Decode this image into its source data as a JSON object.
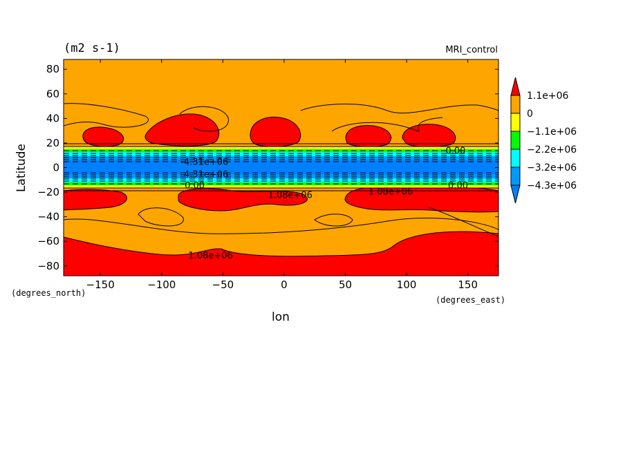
{
  "chart_data": {
    "type": "heatmap",
    "title_left": "(m2 s-1)",
    "title_right": "MRI_control",
    "xlabel": "lon",
    "ylabel": "Latitude",
    "x_unit_label": "(degrees_east)",
    "y_unit_label": "(degrees_north)",
    "xlim": [
      -180,
      175
    ],
    "ylim": [
      -88,
      88
    ],
    "x_ticks": [
      -150,
      -100,
      -50,
      0,
      50,
      100,
      150
    ],
    "y_ticks": [
      80,
      60,
      40,
      20,
      0,
      -20,
      -40,
      -60,
      -80
    ],
    "colorbar": {
      "labels": [
        "1.1e+06",
        "0",
        "-1.1e+06",
        "-2.2e+06",
        "-3.2e+06",
        "-4.3e+06"
      ],
      "colors": [
        "#ff0000",
        "#ffa500",
        "#ffff00",
        "#00ff00",
        "#00ffff",
        "#0099ff",
        "#0080ff"
      ]
    },
    "contour_labels": [
      {
        "text": "1.08e+06",
        "x": 5,
        "y": -22
      },
      {
        "text": "1.08e+06",
        "x": 87,
        "y": -19
      },
      {
        "text": "1.08e+06",
        "x": -60,
        "y": -71
      },
      {
        "text": "0.00",
        "x": -73,
        "y": -14
      },
      {
        "text": "0.00",
        "x": 140,
        "y": 14
      },
      {
        "text": "0.00",
        "x": 142,
        "y": -14
      },
      {
        "text": "-4.31e+06",
        "x": -65,
        "y": 5
      },
      {
        "text": "-4.31e+06",
        "x": -65,
        "y": -5
      }
    ]
  }
}
